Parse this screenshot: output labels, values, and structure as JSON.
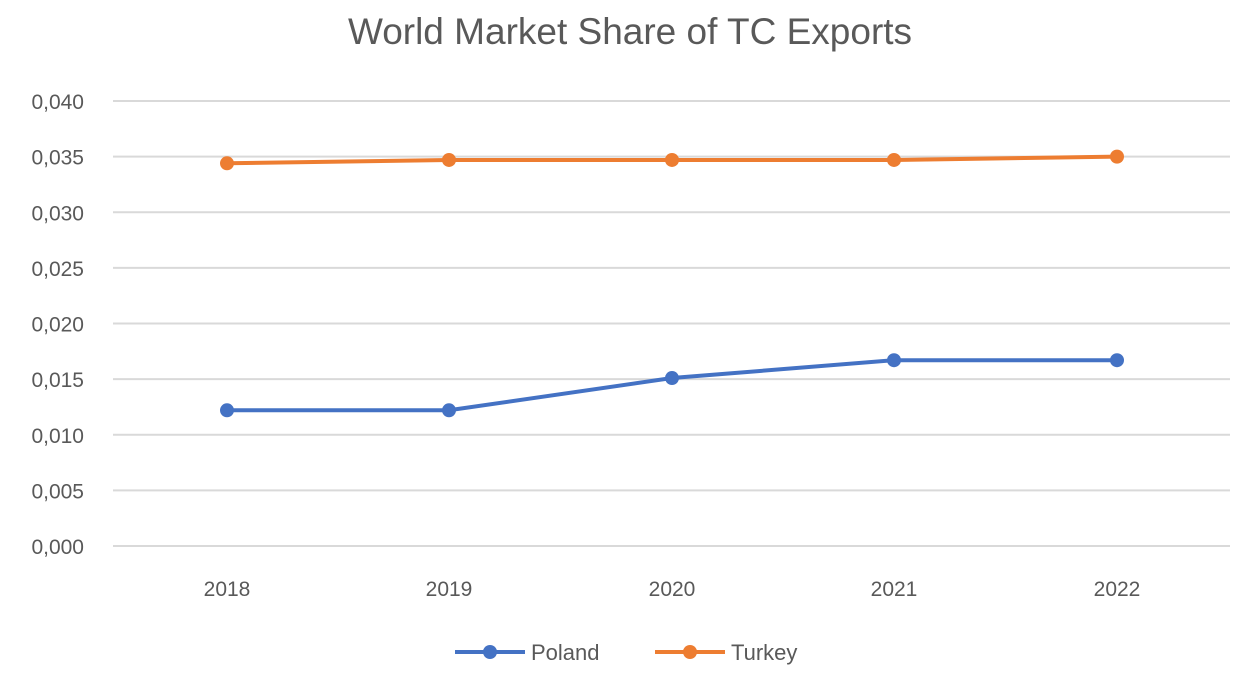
{
  "chart_data": {
    "type": "line",
    "title": "World Market Share of TC Exports",
    "xlabel": "",
    "ylabel": "",
    "categories": [
      "2018",
      "2019",
      "2020",
      "2021",
      "2022"
    ],
    "ylim": [
      0,
      0.04
    ],
    "yticks": [
      "0,000",
      "0,005",
      "0,010",
      "0,015",
      "0,020",
      "0,025",
      "0,030",
      "0,035",
      "0,040"
    ],
    "grid": true,
    "legend": "bottom",
    "series": [
      {
        "name": "Poland",
        "values": [
          0.0122,
          0.0122,
          0.0151,
          0.0167,
          0.0167
        ],
        "color": "#4472c4"
      },
      {
        "name": "Turkey",
        "values": [
          0.0344,
          0.0347,
          0.0347,
          0.0347,
          0.035
        ],
        "color": "#ed7d31"
      }
    ]
  }
}
